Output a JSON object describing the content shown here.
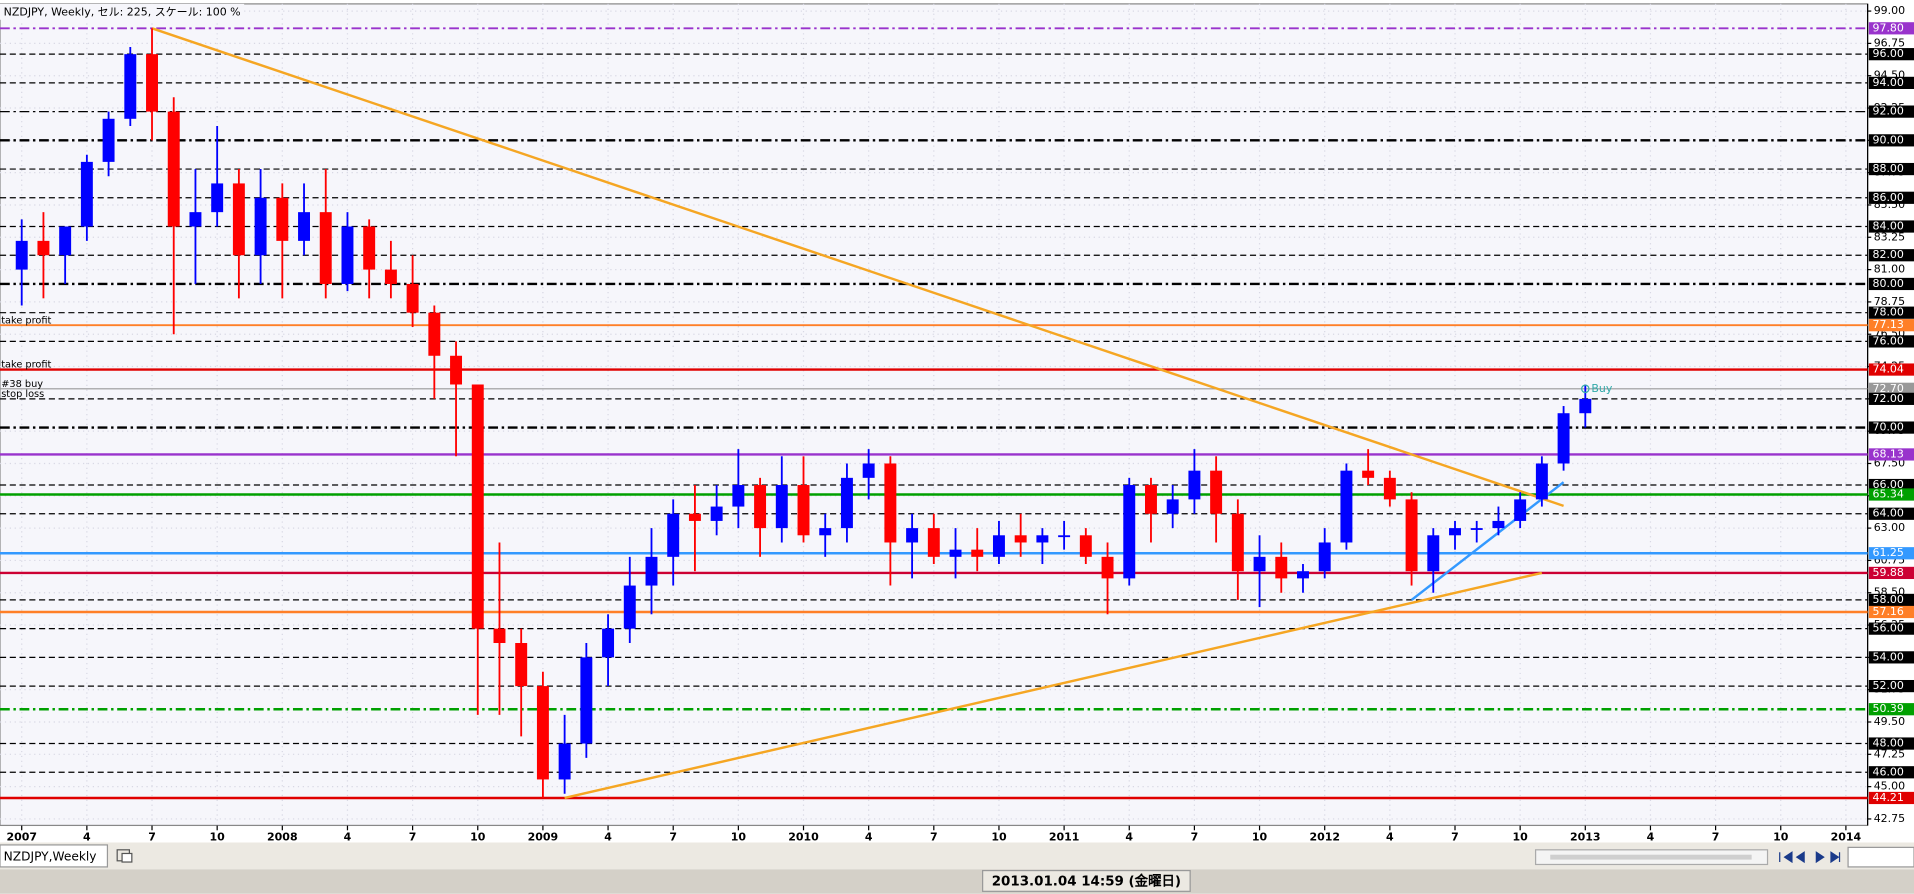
{
  "chart_data": {
    "type": "candlestick",
    "title": "NZDJPY, Weekly, セル: 225, スケール: 100 %",
    "up_color": "#0000ff",
    "down_color": "#ff0000",
    "grid": true,
    "xlim": [
      "2006-12",
      "2014-02"
    ],
    "ylim": [
      42.3,
      99.5
    ],
    "x": [
      "2007-01",
      "2007-02",
      "2007-03",
      "2007-04",
      "2007-05",
      "2007-06",
      "2007-07",
      "2007-08",
      "2007-09",
      "2007-10",
      "2007-11",
      "2007-12",
      "2008-01",
      "2008-02",
      "2008-03",
      "2008-04",
      "2008-05",
      "2008-06",
      "2008-07",
      "2008-08",
      "2008-09",
      "2008-10",
      "2008-11",
      "2008-12",
      "2009-01",
      "2009-02",
      "2009-03",
      "2009-04",
      "2009-05",
      "2009-06",
      "2009-07",
      "2009-08",
      "2009-09",
      "2009-10",
      "2009-11",
      "2009-12",
      "2010-01",
      "2010-02",
      "2010-03",
      "2010-04",
      "2010-05",
      "2010-06",
      "2010-07",
      "2010-08",
      "2010-09",
      "2010-10",
      "2010-11",
      "2010-12",
      "2011-01",
      "2011-02",
      "2011-03",
      "2011-04",
      "2011-05",
      "2011-06",
      "2011-07",
      "2011-08",
      "2011-09",
      "2011-10",
      "2011-11",
      "2011-12",
      "2012-01",
      "2012-02",
      "2012-03",
      "2012-04",
      "2012-05",
      "2012-06",
      "2012-07",
      "2012-08",
      "2012-09",
      "2012-10",
      "2012-11",
      "2012-12",
      "2013-01"
    ],
    "open": [
      81,
      83,
      82,
      84,
      88.5,
      91.5,
      96,
      92,
      84,
      85,
      87,
      82,
      86,
      83,
      85,
      80,
      84,
      81,
      80,
      78,
      75,
      73,
      56,
      55,
      52,
      45.5,
      48,
      54,
      56,
      59,
      61,
      64,
      63.5,
      64.5,
      66,
      63,
      66,
      62.5,
      63,
      66.5,
      67.5,
      62,
      63,
      61,
      61.5,
      61,
      62.5,
      62,
      62.5,
      62.5,
      61,
      59.5,
      66,
      64,
      65,
      67,
      64,
      60,
      61,
      59.5,
      60,
      62,
      67,
      66.5,
      65,
      60,
      62.5,
      63,
      63,
      63.5,
      65,
      67.5,
      71
    ],
    "high": [
      84.5,
      85,
      84,
      89,
      92,
      96.5,
      97.8,
      93,
      88,
      91,
      88,
      88,
      87,
      87,
      88,
      85,
      84.5,
      83,
      82,
      78.5,
      76,
      73,
      62,
      56,
      53,
      50,
      55,
      57,
      61,
      63,
      65,
      66,
      66,
      68.5,
      66.5,
      68,
      68,
      64,
      67.5,
      68.5,
      68,
      64,
      64,
      63,
      63,
      63.5,
      64,
      63,
      63.5,
      63,
      62,
      66.5,
      66.5,
      66,
      68.5,
      68,
      65,
      62.5,
      62,
      60.5,
      63,
      67.5,
      68.5,
      67,
      65.5,
      63,
      63.5,
      63.5,
      64.5,
      65.5,
      68,
      71.5,
      73
    ],
    "low": [
      78.5,
      79,
      80,
      83,
      87.5,
      91,
      90,
      76.5,
      80,
      84,
      79,
      80,
      79,
      82,
      79,
      79.5,
      79,
      79,
      77,
      72,
      68,
      50,
      50,
      48.5,
      44.2,
      44.5,
      47,
      52,
      55,
      57,
      59,
      60,
      62.5,
      63,
      61,
      62,
      62,
      61,
      62,
      65,
      59,
      59.5,
      60.5,
      59.5,
      60,
      60.5,
      61,
      60.5,
      61.5,
      60.5,
      57,
      59,
      62,
      63,
      64,
      62,
      58,
      57.5,
      58.5,
      58.5,
      59.5,
      61.5,
      66,
      64.5,
      59,
      58.5,
      61.5,
      62,
      62.5,
      63,
      64.5,
      67,
      70
    ],
    "close": [
      83,
      82,
      84,
      88.5,
      91.5,
      96,
      92,
      84,
      85,
      87,
      82,
      86,
      83,
      85,
      80,
      84,
      81,
      80,
      78,
      75,
      73,
      56,
      55,
      52,
      45.5,
      48,
      54,
      56,
      59,
      61,
      64,
      63.5,
      64.5,
      66,
      63,
      66,
      62.5,
      63,
      66.5,
      67.5,
      62,
      63,
      61,
      61.5,
      61,
      62.5,
      62,
      62.5,
      62.5,
      61,
      59.5,
      66,
      64,
      65,
      67,
      64,
      60,
      61,
      59.5,
      60,
      62,
      67,
      66.5,
      65,
      60,
      62.5,
      63,
      63,
      63.5,
      65,
      67.5,
      71,
      72
    ],
    "yticks": [
      {
        "value": 99,
        "label": "99.00"
      },
      {
        "value": 96.75,
        "label": "96.75"
      },
      {
        "value": 94.5,
        "label": "94.50"
      },
      {
        "value": 92.25,
        "label": "92.25"
      },
      {
        "value": 90,
        "label": "90.00"
      },
      {
        "value": 87.75,
        "label": "87.75"
      },
      {
        "value": 85.5,
        "label": "85.50"
      },
      {
        "value": 83.25,
        "label": "83.25"
      },
      {
        "value": 81,
        "label": "81.00"
      },
      {
        "value": 78.75,
        "label": "78.75"
      },
      {
        "value": 76.5,
        "label": "76.50"
      },
      {
        "value": 74.25,
        "label": "74.25"
      },
      {
        "value": 72,
        "label": "72.00"
      },
      {
        "value": 69.75,
        "label": "69.75"
      },
      {
        "value": 67.5,
        "label": "67.50"
      },
      {
        "value": 65.25,
        "label": "65.25"
      },
      {
        "value": 63,
        "label": "63.00"
      },
      {
        "value": 60.75,
        "label": "60.75"
      },
      {
        "value": 58.5,
        "label": "58.50"
      },
      {
        "value": 56.25,
        "label": "56.25"
      },
      {
        "value": 54,
        "label": "54.00"
      },
      {
        "value": 51.75,
        "label": "51.75"
      },
      {
        "value": 49.5,
        "label": "49.50"
      },
      {
        "value": 47.25,
        "label": "47.25"
      },
      {
        "value": 45,
        "label": "45.00"
      },
      {
        "value": 42.75,
        "label": "42.75"
      }
    ],
    "xticks": [
      {
        "value": "2007-01",
        "label": "2007"
      },
      {
        "value": "2007-04",
        "label": "4"
      },
      {
        "value": "2007-07",
        "label": "7"
      },
      {
        "value": "2007-10",
        "label": "10"
      },
      {
        "value": "2008-01",
        "label": "2008"
      },
      {
        "value": "2008-04",
        "label": "4"
      },
      {
        "value": "2008-07",
        "label": "7"
      },
      {
        "value": "2008-10",
        "label": "10"
      },
      {
        "value": "2009-01",
        "label": "2009"
      },
      {
        "value": "2009-04",
        "label": "4"
      },
      {
        "value": "2009-07",
        "label": "7"
      },
      {
        "value": "2009-10",
        "label": "10"
      },
      {
        "value": "2010-01",
        "label": "2010"
      },
      {
        "value": "2010-04",
        "label": "4"
      },
      {
        "value": "2010-07",
        "label": "7"
      },
      {
        "value": "2010-10",
        "label": "10"
      },
      {
        "value": "2011-01",
        "label": "2011"
      },
      {
        "value": "2011-04",
        "label": "4"
      },
      {
        "value": "2011-07",
        "label": "7"
      },
      {
        "value": "2011-10",
        "label": "10"
      },
      {
        "value": "2012-01",
        "label": "2012"
      },
      {
        "value": "2012-04",
        "label": "4"
      },
      {
        "value": "2012-07",
        "label": "7"
      },
      {
        "value": "2012-10",
        "label": "10"
      },
      {
        "value": "2013-01",
        "label": "2013"
      },
      {
        "value": "2013-04",
        "label": "4"
      },
      {
        "value": "2013-07",
        "label": "7"
      },
      {
        "value": "2013-10",
        "label": "10"
      },
      {
        "value": "2014-01",
        "label": "2014"
      }
    ],
    "levels": [
      {
        "value": 97.8,
        "label": "97.80",
        "color": "#9933cc",
        "style": "dashdot",
        "width": 1.5
      },
      {
        "value": 96,
        "label": "96.00",
        "color": "#000000",
        "style": "dashed",
        "width": 1
      },
      {
        "value": 94,
        "label": "94.00",
        "color": "#000000",
        "style": "dashed",
        "width": 1
      },
      {
        "value": 92,
        "label": "92.00",
        "color": "#000000",
        "style": "dashdot",
        "width": 1
      },
      {
        "value": 90,
        "label": "90.00",
        "color": "#000000",
        "style": "dashdot",
        "width": 2
      },
      {
        "value": 88,
        "label": "88.00",
        "color": "#000000",
        "style": "dashed",
        "width": 1
      },
      {
        "value": 86,
        "label": "86.00",
        "color": "#000000",
        "style": "dashed",
        "width": 1
      },
      {
        "value": 84,
        "label": "84.00",
        "color": "#000000",
        "style": "dashed",
        "width": 1
      },
      {
        "value": 82,
        "label": "82.00",
        "color": "#000000",
        "style": "dashed",
        "width": 1
      },
      {
        "value": 80,
        "label": "80.00",
        "color": "#000000",
        "style": "dashdot",
        "width": 2
      },
      {
        "value": 78,
        "label": "78.00",
        "color": "#000000",
        "style": "dashed",
        "width": 1
      },
      {
        "value": 77.13,
        "label": "77.13",
        "color": "#ff7f27",
        "style": "solid",
        "width": 1.5,
        "note": "take profit"
      },
      {
        "value": 76,
        "label": "76.00",
        "color": "#000000",
        "style": "dashed",
        "width": 1
      },
      {
        "value": 74.04,
        "label": "74.04",
        "color": "#e00000",
        "style": "solid",
        "width": 2,
        "note": "take profit"
      },
      {
        "value": 72.7,
        "label": "72.70",
        "color": "#999999",
        "style": "solid",
        "width": 1,
        "note": "#38 buy"
      },
      {
        "value": 72,
        "label": "72.00",
        "color": "#000000",
        "style": "dashed",
        "width": 1,
        "note": "stop loss"
      },
      {
        "value": 70,
        "label": "70.00",
        "color": "#000000",
        "style": "dashdot",
        "width": 2
      },
      {
        "value": 68.13,
        "label": "68.13",
        "color": "#9933cc",
        "style": "solid",
        "width": 2
      },
      {
        "value": 66,
        "label": "66.00",
        "color": "#000000",
        "style": "dashed",
        "width": 1
      },
      {
        "value": 65.34,
        "label": "65.34",
        "color": "#00a000",
        "style": "solid",
        "width": 2
      },
      {
        "value": 64,
        "label": "64.00",
        "color": "#000000",
        "style": "dashed",
        "width": 1
      },
      {
        "value": 61.25,
        "label": "61.25",
        "color": "#3399ff",
        "style": "solid",
        "width": 2
      },
      {
        "value": 59.88,
        "label": "59.88",
        "color": "#cc0033",
        "style": "solid",
        "width": 2
      },
      {
        "value": 58,
        "label": "58.00",
        "color": "#000000",
        "style": "dashed",
        "width": 1
      },
      {
        "value": 57.16,
        "label": "57.16",
        "color": "#ff7f27",
        "style": "solid",
        "width": 2
      },
      {
        "value": 56,
        "label": "56.00",
        "color": "#000000",
        "style": "dashed",
        "width": 1
      },
      {
        "value": 54,
        "label": "54.00",
        "color": "#000000",
        "style": "dashed",
        "width": 1
      },
      {
        "value": 52,
        "label": "52.00",
        "color": "#000000",
        "style": "dashed",
        "width": 1
      },
      {
        "value": 50.39,
        "label": "50.39",
        "color": "#00a000",
        "style": "dashdot",
        "width": 2
      },
      {
        "value": 48,
        "label": "48.00",
        "color": "#000000",
        "style": "dashed",
        "width": 1
      },
      {
        "value": 46,
        "label": "46.00",
        "color": "#000000",
        "style": "dashed",
        "width": 1
      },
      {
        "value": 44.21,
        "label": "44.21",
        "color": "#e00000",
        "style": "solid",
        "width": 2
      }
    ],
    "trendlines": [
      {
        "color": "#f5a623",
        "x": [
          "2007-07",
          "2012-12"
        ],
        "y": [
          97.8,
          64.55
        ]
      },
      {
        "color": "#f5a623",
        "x": [
          "2009-02",
          "2012-11"
        ],
        "y": [
          44.21,
          59.88
        ]
      },
      {
        "color": "#3399ff",
        "x": [
          "2012-05",
          "2012-12"
        ],
        "y": [
          58,
          66.2
        ]
      }
    ],
    "annotations": [
      {
        "text": "Buy",
        "x": "2013-01",
        "y": 72.7,
        "color": "#33aaaa"
      }
    ]
  },
  "status_bar": {
    "tab": "NZDJPY,Weekly",
    "time": "2013.01.04 14:59 (金曜日)"
  }
}
